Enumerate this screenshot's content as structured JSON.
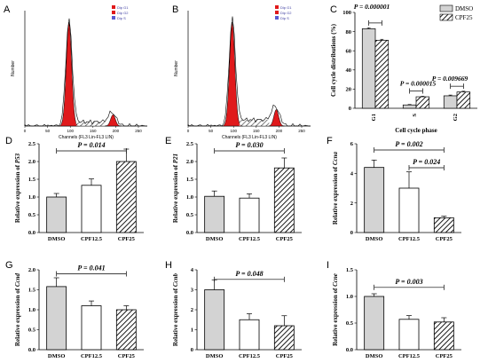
{
  "colors": {
    "gray": "#d3d3d3",
    "red": "#e0191b",
    "black": "#000000",
    "white": "#ffffff"
  },
  "flow": [
    {
      "letter": "A",
      "legend": [
        "Dip G1",
        "Dip G2",
        "Dip S"
      ],
      "ylabel": "Number",
      "xlabel": "Channels (FL3 Lin-FL3 LIN)",
      "xticks": [
        "0",
        "50",
        "100",
        "150",
        "200",
        "250"
      ],
      "g1_peak": 1.0,
      "g2_peak": 0.11,
      "s_level": 0.04
    },
    {
      "letter": "B",
      "legend": [
        "Dip G1",
        "Dip G2",
        "Dip S"
      ],
      "ylabel": "Number",
      "xlabel": "Channels (FL3 Lin-FL3 LIN)",
      "xticks": [
        "0",
        "50",
        "100",
        "150",
        "200",
        "250"
      ],
      "g1_peak": 1.0,
      "g2_peak": 0.16,
      "s_level": 0.06
    }
  ],
  "chart_data": [
    {
      "letter": "C",
      "type": "bar",
      "categories": [
        "G1",
        "S",
        "G2"
      ],
      "series": [
        {
          "name": "DMSO",
          "values": [
            83,
            3.5,
            13
          ]
        },
        {
          "name": "CPF25",
          "values": [
            71,
            12,
            17
          ]
        }
      ],
      "errors": [
        [
          1,
          0.5,
          0.8
        ],
        [
          1,
          0.6,
          0.8
        ]
      ],
      "ylabel": "Cell cycle distributions (%)",
      "xlabel": "Cell cycle phase",
      "ylim": [
        0,
        100
      ],
      "yticks": [
        "0",
        "20",
        "40",
        "60",
        "80",
        "100"
      ],
      "legend_position": "top-right",
      "pvalues": [
        "P = 0.000001",
        "P = 0.000015",
        "P = 0.009669"
      ]
    },
    {
      "letter": "D",
      "type": "bar",
      "categories": [
        "DMSO",
        "CPF12.5",
        "CPF25"
      ],
      "values": [
        1.0,
        1.33,
        2.0
      ],
      "errors": [
        0.1,
        0.18,
        0.35
      ],
      "ylabel_prefix": "Relative expression of ",
      "gene": "P53",
      "ylim": [
        0,
        2.5
      ],
      "yticks": [
        "0.0",
        "0.5",
        "1.0",
        "1.5",
        "2.0",
        "2.5"
      ],
      "pvalues": [
        "P = 0.014"
      ]
    },
    {
      "letter": "E",
      "type": "bar",
      "categories": [
        "DMSO",
        "CPF12.5",
        "CPF25"
      ],
      "values": [
        1.02,
        0.97,
        1.82
      ],
      "errors": [
        0.15,
        0.12,
        0.28
      ],
      "ylabel_prefix": "Relative expression of ",
      "gene": "P21",
      "ylim": [
        0,
        2.5
      ],
      "yticks": [
        "0.0",
        "0.5",
        "1.0",
        "1.5",
        "2.0",
        "2.5"
      ],
      "pvalues": [
        "P = 0.030"
      ]
    },
    {
      "letter": "F",
      "type": "bar",
      "categories": [
        "DMSO",
        "CPF12.5",
        "CPF25"
      ],
      "values": [
        4.4,
        3.0,
        1.0
      ],
      "errors": [
        0.5,
        1.1,
        0.1
      ],
      "ylabel_prefix": "Relative expression of ",
      "gene": "Ccna",
      "ylim": [
        0,
        6
      ],
      "yticks": [
        "0",
        "2",
        "4",
        "6"
      ],
      "pvalues": [
        "P = 0.002",
        "P = 0.024"
      ]
    },
    {
      "letter": "G",
      "type": "bar",
      "categories": [
        "DMSO",
        "CPF12.5",
        "CPF25"
      ],
      "values": [
        1.58,
        1.1,
        1.0
      ],
      "errors": [
        0.22,
        0.12,
        0.1
      ],
      "ylabel_prefix": "Relative expression of ",
      "gene": "Ccnd",
      "ylim": [
        0,
        2.0
      ],
      "yticks": [
        "0.0",
        "0.5",
        "1.0",
        "1.5",
        "2.0"
      ],
      "pvalues": [
        "P = 0.041"
      ]
    },
    {
      "letter": "H",
      "type": "bar",
      "categories": [
        "DMSO",
        "CPF12.5",
        "CPF25"
      ],
      "values": [
        3.0,
        1.5,
        1.2
      ],
      "errors": [
        0.5,
        0.3,
        0.5
      ],
      "ylabel_prefix": "Relative expression of ",
      "gene": "Ccnb",
      "ylim": [
        0,
        4
      ],
      "yticks": [
        "0",
        "1",
        "2",
        "3",
        "4"
      ],
      "pvalues": [
        "P = 0.048"
      ]
    },
    {
      "letter": "I",
      "type": "bar",
      "categories": [
        "DMSO",
        "CPF12.5",
        "CPF25"
      ],
      "values": [
        1.0,
        0.57,
        0.52
      ],
      "errors": [
        0.05,
        0.07,
        0.08
      ],
      "ylabel_prefix": "Relative expression of ",
      "gene": "Ccne",
      "ylim": [
        0,
        1.5
      ],
      "yticks": [
        "0.0",
        "0.5",
        "1.0",
        "1.5"
      ],
      "pvalues": [
        "P = 0.003"
      ]
    }
  ]
}
